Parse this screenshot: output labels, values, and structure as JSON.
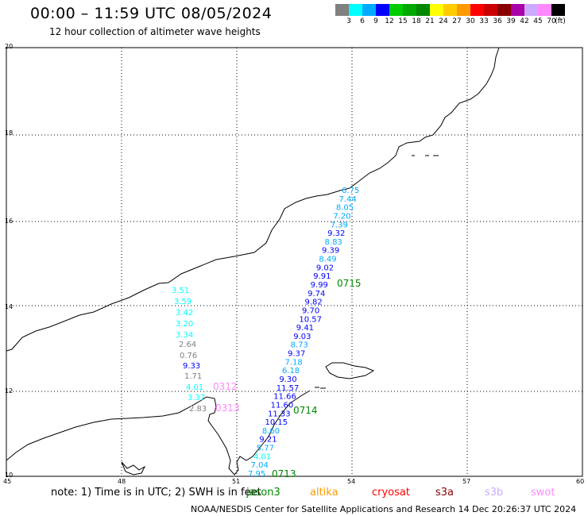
{
  "header": {
    "title": "00:00 – 11:59 UTC 08/05/2024",
    "subtitle": "12 hour collection of altimeter wave heights"
  },
  "color_scale": {
    "colors": [
      "#808080",
      "#00ffff",
      "#00aaff",
      "#0000ff",
      "#00cc00",
      "#00aa00",
      "#008800",
      "#ffff00",
      "#ffcc00",
      "#ff9900",
      "#ff0000",
      "#cc0000",
      "#880000",
      "#aa00aa",
      "#ccaaff",
      "#ff88ff",
      "#000000"
    ],
    "labels": [
      "3",
      "6",
      "9",
      "12",
      "15",
      "18",
      "21",
      "24",
      "27",
      "30",
      "33",
      "36",
      "39",
      "42",
      "45",
      "70",
      "(ft)"
    ]
  },
  "axes": {
    "lat_labels": [
      "20",
      "18",
      "16",
      "14",
      "12",
      "10"
    ],
    "lon_labels": [
      "45",
      "48",
      "51",
      "54",
      "57",
      "60"
    ]
  },
  "tracks": [
    {
      "values": [
        {
          "v": "6.75",
          "c": "#00aaff"
        },
        {
          "v": "7.44",
          "c": "#00aaff"
        },
        {
          "v": "8.05",
          "c": "#00aaff"
        },
        {
          "v": "7.20",
          "c": "#00aaff"
        },
        {
          "v": "7.39",
          "c": "#00aaff"
        },
        {
          "v": "9.32",
          "c": "#0000ff"
        },
        {
          "v": "8.83",
          "c": "#00aaff"
        },
        {
          "v": "9.39",
          "c": "#0000ff"
        },
        {
          "v": "8.49",
          "c": "#00aaff"
        },
        {
          "v": "9.02",
          "c": "#0000ff"
        },
        {
          "v": "9.91",
          "c": "#0000ff"
        },
        {
          "v": "9.99",
          "c": "#0000ff"
        },
        {
          "v": "9.74",
          "c": "#0000ff"
        },
        {
          "v": "9.82",
          "c": "#0000ff"
        },
        {
          "v": "9.70",
          "c": "#0000ff"
        },
        {
          "v": "10.57",
          "c": "#0000ff"
        },
        {
          "v": "9.41",
          "c": "#0000ff"
        },
        {
          "v": "9.03",
          "c": "#0000ff"
        },
        {
          "v": "8.73",
          "c": "#00aaff"
        },
        {
          "v": "9.37",
          "c": "#0000ff"
        },
        {
          "v": "7.18",
          "c": "#00aaff"
        },
        {
          "v": "6.18",
          "c": "#00aaff"
        },
        {
          "v": "9.30",
          "c": "#0000ff"
        },
        {
          "v": "11.57",
          "c": "#0000ff"
        },
        {
          "v": "11.66",
          "c": "#0000ff"
        },
        {
          "v": "11.60",
          "c": "#0000ff"
        },
        {
          "v": "11.33",
          "c": "#0000ff"
        },
        {
          "v": "10.15",
          "c": "#0000ff"
        },
        {
          "v": "8.60",
          "c": "#00aaff"
        },
        {
          "v": "9.21",
          "c": "#0000ff"
        },
        {
          "v": "5.77",
          "c": "#00aaff"
        },
        {
          "v": "4.01",
          "c": "#00ffff"
        },
        {
          "v": "7.04",
          "c": "#00aaff"
        },
        {
          "v": "7.95",
          "c": "#00aaff"
        }
      ]
    },
    {
      "values": [
        {
          "v": "3.51",
          "c": "#00ffff"
        },
        {
          "v": "3.59",
          "c": "#00ffff"
        },
        {
          "v": "3.42",
          "c": "#00ffff"
        },
        {
          "v": "3.20",
          "c": "#00ffff"
        },
        {
          "v": "3.34",
          "c": "#00ffff"
        },
        {
          "v": "2.64",
          "c": "#808080"
        },
        {
          "v": "0.76",
          "c": "#808080"
        },
        {
          "v": "9.33",
          "c": "#0000ff"
        },
        {
          "v": "1.71",
          "c": "#808080"
        },
        {
          "v": "4.01",
          "c": "#00ffff"
        },
        {
          "v": "3.37",
          "c": "#00ffff"
        },
        {
          "v": "2.83",
          "c": "#808080"
        }
      ]
    }
  ],
  "time_labels": [
    {
      "t": "0715",
      "c": "#008800"
    },
    {
      "t": "0714",
      "c": "#008800"
    },
    {
      "t": "0713",
      "c": "#008800"
    },
    {
      "t": "0312",
      "c": "#ff88ff"
    },
    {
      "t": "0313",
      "c": "#ff88ff"
    }
  ],
  "footer": {
    "note": "note: 1) Time is in UTC; 2) SWH is in feet",
    "missions": [
      {
        "name": "jason3",
        "color": "#008800"
      },
      {
        "name": "altika",
        "color": "#ff9900"
      },
      {
        "name": "cryosat",
        "color": "#ff0000"
      },
      {
        "name": "s3a",
        "color": "#880000"
      },
      {
        "name": "s3b",
        "color": "#ccaaff"
      },
      {
        "name": "swot",
        "color": "#ff88ff"
      }
    ],
    "credit": "NOAA/NESDIS Center for Satellite Applications and Research   14 Dec 20:26:37 UTC 2024"
  }
}
